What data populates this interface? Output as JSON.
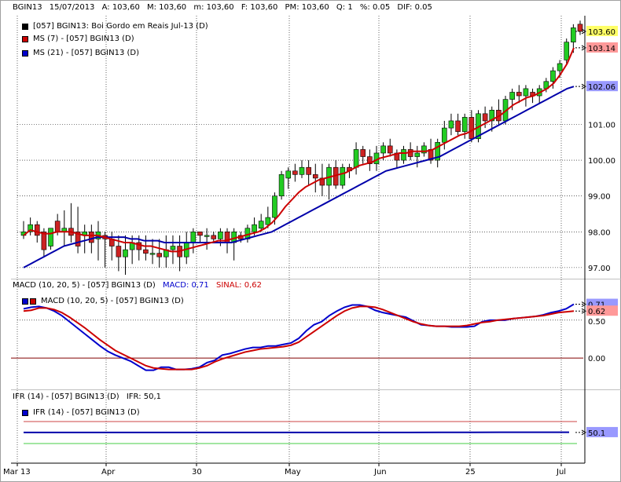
{
  "header": {
    "symbol": "BGIN13",
    "date": "15/07/2013",
    "a_label": "A: 103,60",
    "m_label": "M: 103,60",
    "min_label": "m: 103,60",
    "f_label": "F: 103,60",
    "pm_label": "PM: 103,60",
    "q_label": "Q: 1",
    "pct_label": "%: 0.05",
    "dif_label": "DIF: 0.05"
  },
  "price_legend": [
    {
      "text": "[057] BGIN13: Boi Gordo em Reais Jul-13     (D)",
      "color": "#000000"
    },
    {
      "text": "MS (7)   - [057] BGIN13 (D)",
      "color": "#cc0000"
    },
    {
      "text": "MS (21)  - [057] BGIN13 (D)",
      "color": "#0000cc"
    }
  ],
  "macd_panel": {
    "title": "MACD (10, 20, 5)  - [057] BGIN13 (D)",
    "macd_value": "MACD: 0,71",
    "signal_value": "SINAL: 0,62",
    "legend": "MACD (10, 20, 5)  - [057] BGIN13 (D)"
  },
  "ifr_panel": {
    "title": "IFR (14)  - [057] BGIN13 (D)",
    "ifr_value": "IFR: 50,1",
    "legend": "IFR (14)  - [057] BGIN13 (D)"
  },
  "colors": {
    "up": "#22cc22",
    "down": "#cc2222",
    "ma7": "#cc0000",
    "ma21": "#0000aa",
    "macd": "#0000cc",
    "signal": "#cc0000",
    "ifr": "#0000aa"
  },
  "chart_data": [
    {
      "type": "candlestick",
      "title": "[057] BGIN13: Boi Gordo em Reais Jul-13 (D)",
      "ylim": [
        96.8,
        103.95
      ],
      "yticks": [
        "97.00",
        "98.00",
        "99.00",
        "100.00",
        "101.00",
        "102.06",
        "103.14",
        "103.60"
      ],
      "value_labels": {
        "last": "103.60",
        "ma7": "103.14",
        "ma21": "102.06"
      },
      "xticks": [
        "Mar 13",
        "Apr",
        "30",
        "May",
        "Jun",
        "25",
        "Jul"
      ],
      "candles": [
        [
          97.9,
          98.3,
          97.8,
          98.0
        ],
        [
          98.0,
          98.4,
          97.9,
          98.2
        ],
        [
          98.2,
          98.3,
          97.7,
          97.9
        ],
        [
          98.0,
          98.1,
          97.3,
          97.5
        ],
        [
          97.6,
          98.1,
          97.5,
          98.1
        ],
        [
          98.3,
          98.5,
          97.9,
          98.0
        ],
        [
          98.0,
          98.6,
          97.6,
          98.1
        ],
        [
          98.1,
          98.8,
          97.7,
          97.9
        ],
        [
          98.0,
          98.7,
          97.4,
          97.6
        ],
        [
          97.9,
          98.2,
          97.4,
          98.0
        ],
        [
          98.0,
          98.2,
          97.4,
          97.7
        ],
        [
          97.8,
          98.3,
          97.2,
          98.0
        ],
        [
          97.9,
          98.0,
          97.0,
          97.8
        ],
        [
          97.8,
          98.0,
          97.2,
          97.6
        ],
        [
          97.6,
          97.9,
          96.9,
          97.3
        ],
        [
          97.3,
          97.9,
          96.8,
          97.5
        ],
        [
          97.5,
          97.9,
          97.1,
          97.7
        ],
        [
          97.7,
          97.9,
          97.2,
          97.5
        ],
        [
          97.5,
          97.9,
          97.2,
          97.4
        ],
        [
          97.4,
          97.8,
          97.1,
          97.4
        ],
        [
          97.4,
          97.8,
          97.0,
          97.3
        ],
        [
          97.3,
          97.9,
          97.0,
          97.5
        ],
        [
          97.5,
          97.9,
          97.1,
          97.6
        ],
        [
          97.6,
          97.9,
          96.9,
          97.3
        ],
        [
          97.3,
          98.0,
          97.1,
          97.7
        ],
        [
          97.7,
          98.1,
          97.4,
          98.0
        ],
        [
          98.0,
          98.0,
          97.7,
          97.9
        ],
        [
          97.9,
          98.1,
          97.5,
          97.9
        ],
        [
          97.9,
          98.0,
          97.7,
          97.8
        ],
        [
          97.8,
          98.1,
          97.6,
          98.0
        ],
        [
          98.0,
          98.1,
          97.4,
          97.7
        ],
        [
          97.7,
          98.1,
          97.2,
          98.0
        ],
        [
          97.9,
          98.0,
          97.7,
          97.8
        ],
        [
          97.8,
          98.2,
          97.7,
          98.1
        ],
        [
          98.0,
          98.4,
          97.9,
          98.2
        ],
        [
          98.1,
          98.5,
          98.0,
          98.3
        ],
        [
          98.2,
          98.7,
          98.1,
          98.4
        ],
        [
          98.4,
          99.1,
          98.2,
          99.0
        ],
        [
          99.0,
          99.7,
          98.9,
          99.6
        ],
        [
          99.5,
          99.8,
          99.2,
          99.7
        ],
        [
          99.7,
          99.9,
          99.4,
          99.6
        ],
        [
          99.6,
          100.0,
          99.5,
          99.8
        ],
        [
          99.8,
          100.0,
          99.3,
          99.6
        ],
        [
          99.6,
          99.9,
          99.1,
          99.5
        ],
        [
          99.5,
          99.9,
          99.0,
          99.3
        ],
        [
          99.3,
          99.9,
          98.9,
          99.8
        ],
        [
          99.8,
          100.0,
          99.2,
          99.3
        ],
        [
          99.3,
          99.9,
          99.2,
          99.8
        ],
        [
          99.8,
          99.9,
          99.5,
          99.7
        ],
        [
          99.8,
          100.5,
          99.6,
          100.3
        ],
        [
          100.3,
          100.4,
          99.9,
          100.1
        ],
        [
          100.1,
          100.3,
          99.7,
          99.9
        ],
        [
          99.9,
          100.4,
          99.7,
          100.2
        ],
        [
          100.2,
          100.5,
          100.0,
          100.4
        ],
        [
          100.4,
          100.6,
          100.1,
          100.2
        ],
        [
          100.2,
          100.3,
          99.8,
          100.0
        ],
        [
          100.0,
          100.4,
          99.9,
          100.3
        ],
        [
          100.3,
          100.5,
          100.0,
          100.1
        ],
        [
          100.1,
          100.4,
          99.8,
          100.2
        ],
        [
          100.2,
          100.5,
          100.1,
          100.4
        ],
        [
          100.3,
          100.6,
          99.9,
          100.0
        ],
        [
          100.0,
          100.6,
          99.8,
          100.5
        ],
        [
          100.5,
          101.1,
          100.3,
          100.9
        ],
        [
          100.9,
          101.3,
          100.7,
          101.1
        ],
        [
          101.1,
          101.3,
          100.7,
          100.8
        ],
        [
          100.8,
          101.3,
          100.6,
          101.2
        ],
        [
          101.2,
          101.4,
          100.5,
          100.6
        ],
        [
          100.6,
          101.4,
          100.5,
          101.3
        ],
        [
          101.3,
          101.5,
          100.9,
          101.1
        ],
        [
          101.1,
          101.5,
          100.8,
          101.4
        ],
        [
          101.4,
          101.7,
          101.0,
          101.1
        ],
        [
          101.1,
          101.8,
          101.0,
          101.7
        ],
        [
          101.7,
          102.0,
          101.4,
          101.9
        ],
        [
          101.9,
          102.1,
          101.6,
          101.8
        ],
        [
          101.8,
          102.1,
          101.5,
          102.0
        ],
        [
          101.9,
          102.0,
          101.6,
          101.8
        ],
        [
          101.8,
          102.1,
          101.6,
          102.0
        ],
        [
          102.0,
          102.3,
          101.9,
          102.2
        ],
        [
          102.2,
          102.6,
          102.0,
          102.5
        ],
        [
          102.5,
          102.8,
          102.3,
          102.7
        ],
        [
          102.8,
          103.4,
          102.7,
          103.3
        ],
        [
          103.3,
          103.8,
          103.0,
          103.7
        ],
        [
          103.8,
          103.9,
          103.5,
          103.6
        ]
      ],
      "ma7": [
        97.9,
        98.05,
        98.0,
        97.95,
        97.95,
        98.0,
        98.0,
        98.0,
        97.95,
        97.9,
        97.9,
        97.9,
        97.85,
        97.8,
        97.75,
        97.7,
        97.7,
        97.65,
        97.6,
        97.6,
        97.55,
        97.5,
        97.45,
        97.45,
        97.5,
        97.55,
        97.6,
        97.65,
        97.7,
        97.75,
        97.75,
        97.8,
        97.85,
        97.9,
        97.95,
        98.0,
        98.1,
        98.25,
        98.45,
        98.7,
        98.9,
        99.1,
        99.25,
        99.35,
        99.45,
        99.5,
        99.55,
        99.6,
        99.65,
        99.75,
        99.85,
        99.9,
        99.95,
        100.05,
        100.1,
        100.15,
        100.2,
        100.2,
        100.25,
        100.25,
        100.25,
        100.3,
        100.4,
        100.5,
        100.6,
        100.7,
        100.75,
        100.85,
        100.95,
        101.05,
        101.15,
        101.25,
        101.4,
        101.55,
        101.65,
        101.75,
        101.8,
        101.9,
        102.0,
        102.15,
        102.4,
        102.7,
        103.14
      ],
      "ma21": [
        97.0,
        97.1,
        97.2,
        97.3,
        97.4,
        97.5,
        97.6,
        97.65,
        97.7,
        97.75,
        97.8,
        97.85,
        97.85,
        97.85,
        97.85,
        97.85,
        97.8,
        97.8,
        97.75,
        97.75,
        97.75,
        97.7,
        97.7,
        97.7,
        97.7,
        97.7,
        97.7,
        97.7,
        97.7,
        97.7,
        97.7,
        97.7,
        97.75,
        97.8,
        97.85,
        97.9,
        97.95,
        98.0,
        98.1,
        98.2,
        98.3,
        98.4,
        98.5,
        98.6,
        98.7,
        98.8,
        98.9,
        99.0,
        99.1,
        99.2,
        99.3,
        99.4,
        99.5,
        99.6,
        99.7,
        99.75,
        99.8,
        99.85,
        99.9,
        99.95,
        100.0,
        100.05,
        100.1,
        100.2,
        100.3,
        100.4,
        100.5,
        100.6,
        100.7,
        100.8,
        100.9,
        101.0,
        101.1,
        101.2,
        101.3,
        101.4,
        101.5,
        101.6,
        101.7,
        101.8,
        101.9,
        102.0,
        102.06
      ]
    },
    {
      "type": "line",
      "title": "MACD (10, 20, 5) - [057] BGIN13 (D)",
      "ylim": [
        -0.35,
        0.85
      ],
      "yticks": [
        "0.00",
        "0.50",
        "0.62",
        "0.71"
      ],
      "series": [
        {
          "name": "MACD",
          "values": [
            0.65,
            0.67,
            0.68,
            0.66,
            0.62,
            0.56,
            0.48,
            0.4,
            0.32,
            0.24,
            0.16,
            0.09,
            0.04,
            0.0,
            -0.04,
            -0.1,
            -0.16,
            -0.16,
            -0.12,
            -0.12,
            -0.15,
            -0.15,
            -0.14,
            -0.12,
            -0.06,
            -0.03,
            0.04,
            0.06,
            0.09,
            0.12,
            0.14,
            0.14,
            0.16,
            0.16,
            0.18,
            0.2,
            0.26,
            0.36,
            0.44,
            0.48,
            0.56,
            0.62,
            0.67,
            0.7,
            0.7,
            0.68,
            0.63,
            0.6,
            0.58,
            0.56,
            0.54,
            0.49,
            0.44,
            0.43,
            0.42,
            0.42,
            0.41,
            0.41,
            0.41,
            0.42,
            0.48,
            0.5,
            0.5,
            0.5,
            0.52,
            0.53,
            0.54,
            0.55,
            0.57,
            0.6,
            0.62,
            0.65,
            0.71
          ]
        },
        {
          "name": "SINAL",
          "values": [
            0.62,
            0.63,
            0.66,
            0.66,
            0.64,
            0.6,
            0.54,
            0.47,
            0.4,
            0.32,
            0.24,
            0.17,
            0.1,
            0.05,
            0.0,
            -0.05,
            -0.1,
            -0.13,
            -0.14,
            -0.15,
            -0.15,
            -0.15,
            -0.15,
            -0.13,
            -0.1,
            -0.05,
            -0.01,
            0.02,
            0.05,
            0.08,
            0.1,
            0.12,
            0.13,
            0.14,
            0.15,
            0.17,
            0.21,
            0.28,
            0.35,
            0.42,
            0.49,
            0.56,
            0.62,
            0.66,
            0.68,
            0.68,
            0.67,
            0.64,
            0.6,
            0.56,
            0.52,
            0.48,
            0.45,
            0.43,
            0.42,
            0.42,
            0.42,
            0.42,
            0.43,
            0.45,
            0.47,
            0.48,
            0.5,
            0.51,
            0.52,
            0.53,
            0.54,
            0.55,
            0.56,
            0.58,
            0.6,
            0.61,
            0.62
          ]
        }
      ]
    },
    {
      "type": "line",
      "title": "IFR (14) - [057] BGIN13 (D)",
      "ylim": [
        0,
        100
      ],
      "yticks": [
        "50.1"
      ],
      "levels": [
        70,
        30
      ],
      "series": [
        {
          "name": "IFR",
          "values": [
            50.1,
            50.1,
            50.1,
            50.1,
            50.1,
            50.1,
            50.1,
            50.1,
            50.1,
            50.1,
            50.1,
            50.1,
            50.1,
            50.3,
            50.3,
            50.5,
            50.6,
            50.6
          ]
        }
      ]
    }
  ]
}
